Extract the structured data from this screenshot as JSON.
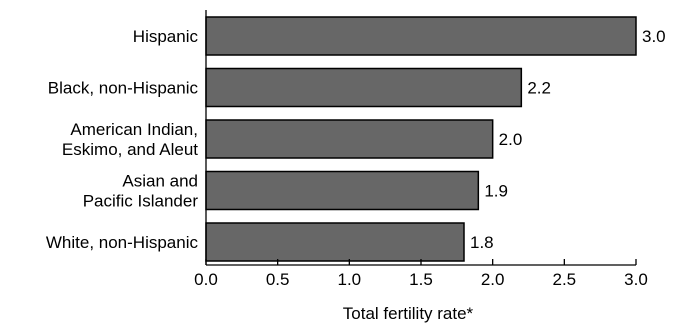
{
  "chart_data": {
    "type": "bar",
    "orientation": "horizontal",
    "categories": [
      [
        "Hispanic"
      ],
      [
        "Black, non-Hispanic"
      ],
      [
        "American Indian,",
        "Eskimo, and Aleut"
      ],
      [
        "Asian and",
        "Pacific Islander"
      ],
      [
        "White, non-Hispanic"
      ]
    ],
    "values": [
      3.0,
      2.2,
      2.0,
      1.9,
      1.8
    ],
    "value_labels": [
      "3.0",
      "2.2",
      "2.0",
      "1.9",
      "1.8"
    ],
    "xlabel": "Total fertility rate*",
    "xlim": [
      0,
      3.0
    ],
    "x_ticks": [
      "0.0",
      "0.5",
      "1.0",
      "1.5",
      "2.0",
      "2.5",
      "3.0"
    ],
    "grid": false,
    "bar_color": "#676767"
  }
}
